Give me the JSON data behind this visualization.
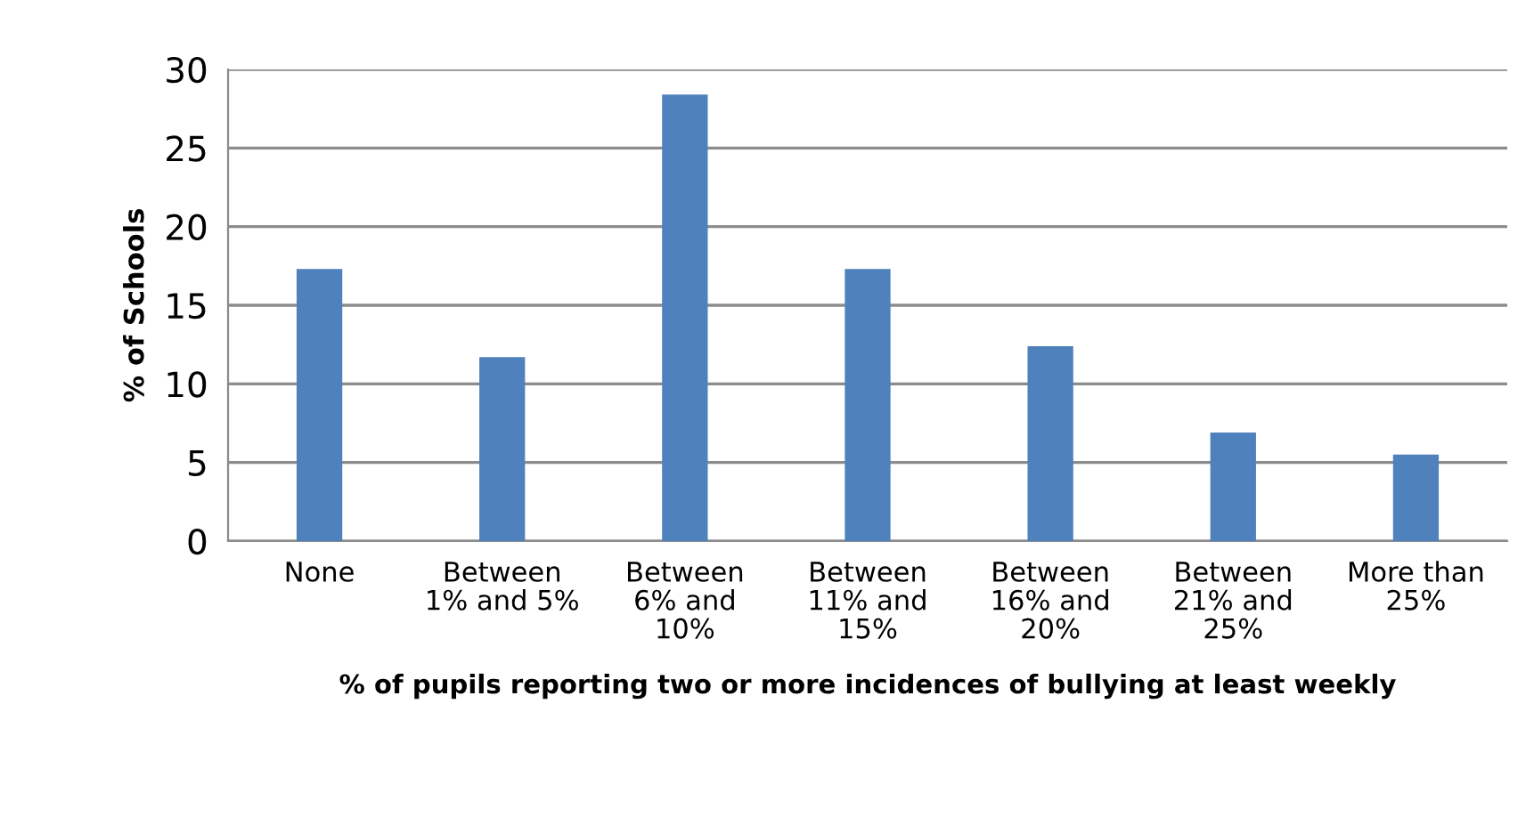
{
  "chart_data": {
    "type": "bar",
    "categories": [
      "None",
      "Between\n1% and 5%",
      "Between\n6% and\n10%",
      "Between\n11% and\n15%",
      "Between\n16% and\n20%",
      "Between\n21% and\n25%",
      "More than\n25%"
    ],
    "values": [
      17.3,
      11.7,
      28.4,
      17.3,
      12.4,
      6.9,
      5.5
    ],
    "color": "#4f81bd",
    "ylabel": "% of Schools",
    "xlabel": "% of pupils reporting two or more incidences of bullying at least weekly",
    "ylim": [
      0,
      30
    ],
    "yticks": [
      0,
      5,
      10,
      15,
      20,
      25,
      30
    ],
    "grid": "y",
    "legend": false
  }
}
